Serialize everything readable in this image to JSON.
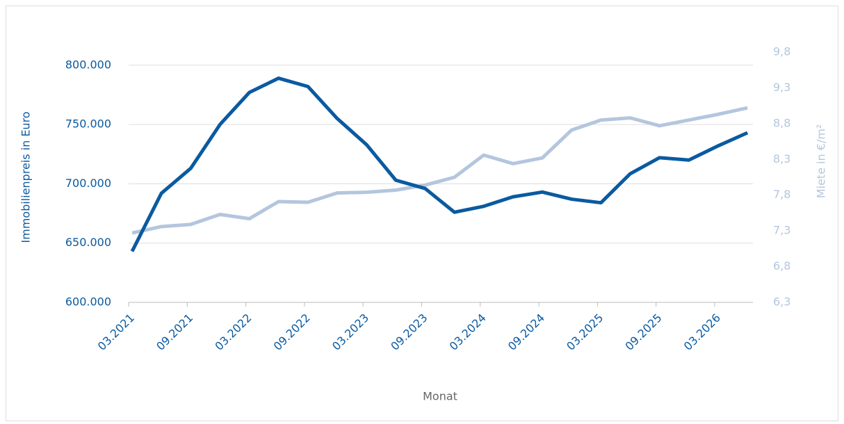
{
  "chart_data": {
    "type": "line",
    "y_label": "Immobilienpreis in Euro",
    "y2_label": "Miete in €/m²",
    "x_label": "Monat",
    "categories": [
      "03.2021",
      null,
      "09.2021",
      null,
      "03.2022",
      null,
      "09.2022",
      null,
      "03.2023",
      null,
      "09.2023",
      null,
      "03.2024",
      null,
      "09.2024",
      null,
      "03.2025",
      null,
      "09.2025",
      null,
      "03.2026",
      null
    ],
    "series": [
      {
        "color": "#0a5aa0",
        "axis": "y",
        "values": [
          643000,
          692000,
          713000,
          750000,
          777000,
          789000,
          782000,
          755000,
          733000,
          703000,
          696000,
          676000,
          681000,
          689000,
          693000,
          687000,
          684000,
          708500,
          722000,
          720000,
          732000,
          743000
        ]
      },
      {
        "color": "#b4c6de",
        "axis": "y2",
        "values": [
          7.27,
          7.36,
          7.39,
          7.53,
          7.47,
          7.71,
          7.7,
          7.83,
          7.84,
          7.87,
          7.94,
          8.05,
          8.36,
          8.24,
          8.32,
          8.71,
          8.85,
          8.88,
          8.77,
          8.85,
          8.93,
          9.02
        ]
      }
    ],
    "ylim": [
      600000,
      811000
    ],
    "yticks": [
      {
        "value": 600000,
        "label": "600.000"
      },
      {
        "value": 650000,
        "label": "650.000"
      },
      {
        "value": 700000,
        "label": "700.000"
      },
      {
        "value": 750000,
        "label": "750.000"
      },
      {
        "value": 800000,
        "label": "800.000"
      }
    ],
    "y2lim": [
      6.3,
      9.8
    ],
    "y2ticks": [
      {
        "value": 6.3,
        "label": "6,3"
      },
      {
        "value": 6.8,
        "label": "6,8"
      },
      {
        "value": 7.3,
        "label": "7,3"
      },
      {
        "value": 7.8,
        "label": "7,8"
      },
      {
        "value": 8.3,
        "label": "8,3"
      },
      {
        "value": 8.8,
        "label": "8,8"
      },
      {
        "value": 9.3,
        "label": "9,3"
      },
      {
        "value": 9.8,
        "label": "9,8"
      }
    ],
    "grid": true
  }
}
